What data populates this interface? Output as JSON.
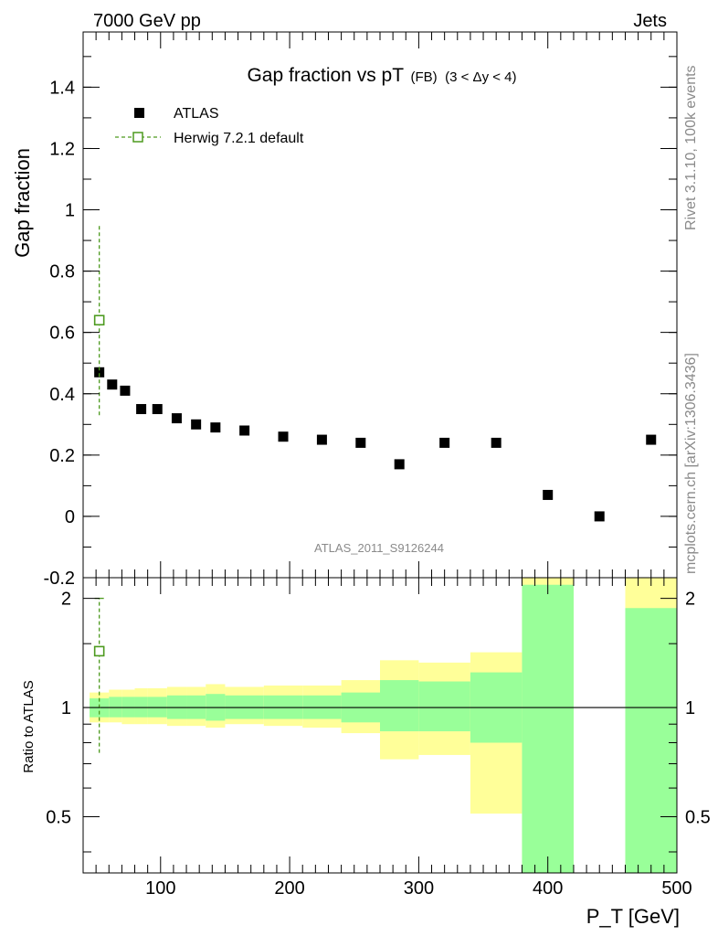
{
  "header": {
    "left": "7000 GeV pp",
    "right": "Jets",
    "side_top": "Rivet 3.1.10,  100k events",
    "side_bottom": "mcplots.cern.ch [arXiv:1306.3436]",
    "watermark": "ATLAS_2011_S9126244"
  },
  "colors": {
    "data": "#000000",
    "mc": "#4d9a1f",
    "band_inner": "#99ff99",
    "band_outer": "#ffff99"
  },
  "chart_data": [
    {
      "type": "scatter",
      "title_main": "Gap fraction vs pT",
      "title_sub": "(FB)",
      "title_cond": "(3 < Δy < 4)",
      "ylabel": "Gap fraction",
      "xlim": [
        40,
        500
      ],
      "ylim": [
        -0.2,
        1.58
      ],
      "yticks": [
        "-0.2",
        "0",
        "0.2",
        "0.4",
        "0.6",
        "0.8",
        "1",
        "1.2",
        "1.4"
      ],
      "legend": [
        {
          "name": "ATLAS",
          "marker": "filled-square"
        },
        {
          "name": "Herwig 7.2.1 default",
          "marker": "open-square-dashed"
        }
      ],
      "series": [
        {
          "name": "ATLAS",
          "x": [
            52.5,
            62.5,
            72.5,
            85,
            97.5,
            112.5,
            127.5,
            142.5,
            165,
            195,
            225,
            255,
            285,
            320,
            360,
            400,
            440,
            480
          ],
          "y": [
            0.47,
            0.43,
            0.41,
            0.35,
            0.35,
            0.32,
            0.3,
            0.29,
            0.28,
            0.26,
            0.25,
            0.24,
            0.17,
            0.24,
            0.24,
            0.07,
            0.0,
            0.25
          ]
        },
        {
          "name": "Herwig 7.2.1 default",
          "x": [
            52.5
          ],
          "y": [
            0.64
          ],
          "err_low": [
            0.33
          ],
          "err_high": [
            0.95
          ]
        }
      ]
    },
    {
      "type": "scatter",
      "ylabel": "Ratio to ATLAS",
      "xlabel": "P_T [GeV]",
      "xlim": [
        40,
        500
      ],
      "ylim": [
        0.35,
        2.28
      ],
      "yscale": "log",
      "xticks": [
        "100",
        "200",
        "300",
        "400",
        "500"
      ],
      "yticks_left": [
        "0.5",
        "1",
        "2"
      ],
      "yticks_right": [
        "0.5",
        "1",
        "2"
      ],
      "reference_line": 1,
      "bands": [
        {
          "x0": 45,
          "x1": 60,
          "inner": [
            0.94,
            1.06
          ],
          "outer": [
            0.91,
            1.1
          ]
        },
        {
          "x0": 60,
          "x1": 70,
          "inner": [
            0.94,
            1.07
          ],
          "outer": [
            0.91,
            1.12
          ]
        },
        {
          "x0": 70,
          "x1": 80,
          "inner": [
            0.94,
            1.07
          ],
          "outer": [
            0.9,
            1.12
          ]
        },
        {
          "x0": 80,
          "x1": 90,
          "inner": [
            0.94,
            1.07
          ],
          "outer": [
            0.9,
            1.13
          ]
        },
        {
          "x0": 90,
          "x1": 105,
          "inner": [
            0.94,
            1.07
          ],
          "outer": [
            0.9,
            1.13
          ]
        },
        {
          "x0": 105,
          "x1": 120,
          "inner": [
            0.93,
            1.08
          ],
          "outer": [
            0.89,
            1.14
          ]
        },
        {
          "x0": 120,
          "x1": 135,
          "inner": [
            0.93,
            1.08
          ],
          "outer": [
            0.89,
            1.14
          ]
        },
        {
          "x0": 135,
          "x1": 150,
          "inner": [
            0.92,
            1.09
          ],
          "outer": [
            0.88,
            1.16
          ]
        },
        {
          "x0": 150,
          "x1": 180,
          "inner": [
            0.93,
            1.08
          ],
          "outer": [
            0.9,
            1.14
          ]
        },
        {
          "x0": 180,
          "x1": 210,
          "inner": [
            0.93,
            1.08
          ],
          "outer": [
            0.89,
            1.15
          ]
        },
        {
          "x0": 210,
          "x1": 240,
          "inner": [
            0.93,
            1.08
          ],
          "outer": [
            0.88,
            1.15
          ]
        },
        {
          "x0": 240,
          "x1": 270,
          "inner": [
            0.91,
            1.1
          ],
          "outer": [
            0.85,
            1.19
          ]
        },
        {
          "x0": 270,
          "x1": 300,
          "inner": [
            0.86,
            1.19
          ],
          "outer": [
            0.72,
            1.35
          ]
        },
        {
          "x0": 300,
          "x1": 340,
          "inner": [
            0.86,
            1.18
          ],
          "outer": [
            0.74,
            1.33
          ]
        },
        {
          "x0": 340,
          "x1": 380,
          "inner": [
            0.8,
            1.25
          ],
          "outer": [
            0.51,
            1.42
          ]
        },
        {
          "x0": 380,
          "x1": 420,
          "inner": [
            0.35,
            2.18
          ],
          "outer": [
            0.35,
            2.28
          ]
        },
        {
          "x0": 460,
          "x1": 500,
          "inner": [
            0.35,
            1.88
          ],
          "outer": [
            0.35,
            2.28
          ]
        }
      ],
      "series": [
        {
          "name": "Herwig 7.2.1 default",
          "x": [
            52.5
          ],
          "y": [
            1.43
          ],
          "err_low": [
            0.75
          ],
          "err_high": [
            2.0
          ]
        }
      ]
    }
  ]
}
